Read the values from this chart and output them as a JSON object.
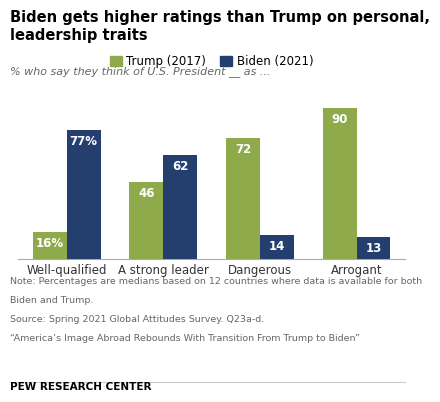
{
  "title": "Biden gets higher ratings than Trump on personal,\nleadership traits",
  "subtitle": "% who say they think of U.S. President __ as ...",
  "categories": [
    "Well-qualified",
    "A strong leader",
    "Dangerous",
    "Arrogant"
  ],
  "trump_values": [
    16,
    46,
    72,
    90
  ],
  "biden_values": [
    77,
    62,
    14,
    13
  ],
  "trump_color": "#8faa4b",
  "biden_color": "#243f6e",
  "trump_label": "Trump (2017)",
  "biden_label": "Biden (2021)",
  "bar_width": 0.35,
  "ylim": [
    0,
    100
  ],
  "note_line1": "Note: Percentages are medians based on 12 countries where data is available for both",
  "note_line2": "Biden and Trump.",
  "note_line3": "Source: Spring 2021 Global Attitudes Survey. Q23a-d.",
  "note_line4": "“America’s Image Abroad Rebounds With Transition From Trump to Biden”",
  "footer": "PEW RESEARCH CENTER",
  "value_color": "#ffffff"
}
